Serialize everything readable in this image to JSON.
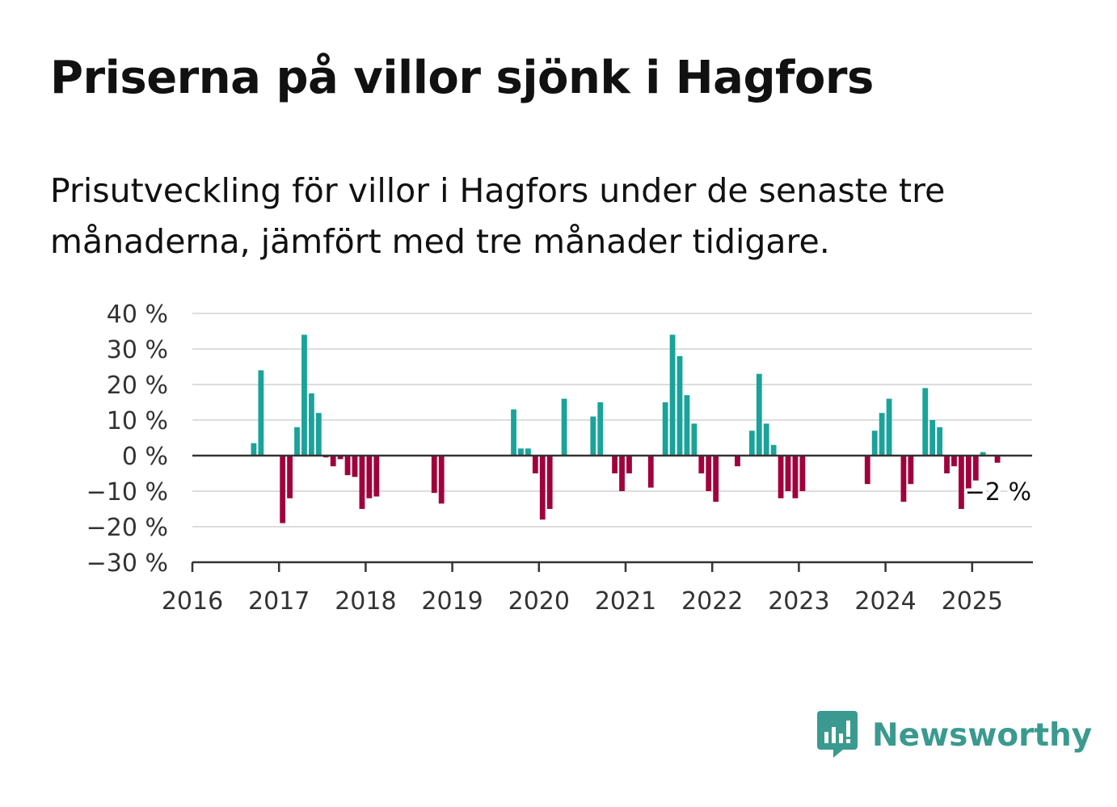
{
  "title": "Priserna på villor sjönk i Hagfors",
  "subtitle": "Prisutveckling för villor i Hagfors under de senaste tre månaderna, jämfört med tre månader tidigare.",
  "brand": {
    "name": "Newsworthy",
    "icon": "newsworthy-logo-icon"
  },
  "colors": {
    "positive": "#1aa39a",
    "negative": "#a0003c",
    "grid": "#dddddd",
    "axis": "#333333"
  },
  "chart_data": {
    "type": "bar",
    "title": "Priserna på villor sjönk i Hagfors",
    "x_unit": "month",
    "x_start": "2016-01",
    "ylim": [
      -30,
      40
    ],
    "yticks": [
      -30,
      -20,
      -10,
      0,
      10,
      20,
      30,
      40
    ],
    "ytick_labels": [
      "−30 %",
      "−20 %",
      "−10 %",
      "0 %",
      "10 %",
      "20 %",
      "30 %",
      "40 %"
    ],
    "xticks": [
      "2016",
      "2017",
      "2018",
      "2019",
      "2020",
      "2021",
      "2022",
      "2023",
      "2024",
      "2025"
    ],
    "grid": true,
    "annotation": {
      "x": "2025-04",
      "text": "−2 %"
    },
    "series": [
      {
        "values": [
          {
            "x": "2016-09",
            "y": 3.5
          },
          {
            "x": "2016-10",
            "y": 24
          },
          {
            "x": "2017-01",
            "y": -19
          },
          {
            "x": "2017-02",
            "y": -12
          },
          {
            "x": "2017-03",
            "y": 8
          },
          {
            "x": "2017-04",
            "y": 34
          },
          {
            "x": "2017-05",
            "y": 17.5
          },
          {
            "x": "2017-06",
            "y": 12
          },
          {
            "x": "2017-07",
            "y": -0.5
          },
          {
            "x": "2017-08",
            "y": -3
          },
          {
            "x": "2017-09",
            "y": -1
          },
          {
            "x": "2017-10",
            "y": -5.5
          },
          {
            "x": "2017-11",
            "y": -6
          },
          {
            "x": "2017-12",
            "y": -15
          },
          {
            "x": "2018-01",
            "y": -12
          },
          {
            "x": "2018-02",
            "y": -11.5
          },
          {
            "x": "2018-10",
            "y": -10.5
          },
          {
            "x": "2018-11",
            "y": -13.5
          },
          {
            "x": "2019-09",
            "y": 13
          },
          {
            "x": "2019-10",
            "y": 2
          },
          {
            "x": "2019-11",
            "y": 2
          },
          {
            "x": "2019-12",
            "y": -5
          },
          {
            "x": "2020-01",
            "y": -18
          },
          {
            "x": "2020-02",
            "y": -15
          },
          {
            "x": "2020-04",
            "y": 16
          },
          {
            "x": "2020-08",
            "y": 11
          },
          {
            "x": "2020-09",
            "y": 15
          },
          {
            "x": "2020-11",
            "y": -5
          },
          {
            "x": "2020-12",
            "y": -10
          },
          {
            "x": "2021-01",
            "y": -5
          },
          {
            "x": "2021-04",
            "y": -9
          },
          {
            "x": "2021-06",
            "y": 15
          },
          {
            "x": "2021-07",
            "y": 34
          },
          {
            "x": "2021-08",
            "y": 28
          },
          {
            "x": "2021-09",
            "y": 17
          },
          {
            "x": "2021-10",
            "y": 9
          },
          {
            "x": "2021-11",
            "y": -5
          },
          {
            "x": "2021-12",
            "y": -10
          },
          {
            "x": "2022-01",
            "y": -13
          },
          {
            "x": "2022-04",
            "y": -3
          },
          {
            "x": "2022-06",
            "y": 7
          },
          {
            "x": "2022-07",
            "y": 23
          },
          {
            "x": "2022-08",
            "y": 9
          },
          {
            "x": "2022-09",
            "y": 3
          },
          {
            "x": "2022-10",
            "y": -12
          },
          {
            "x": "2022-11",
            "y": -10
          },
          {
            "x": "2022-12",
            "y": -12
          },
          {
            "x": "2023-01",
            "y": -10
          },
          {
            "x": "2023-10",
            "y": -8
          },
          {
            "x": "2023-11",
            "y": 7
          },
          {
            "x": "2023-12",
            "y": 12
          },
          {
            "x": "2024-01",
            "y": 16
          },
          {
            "x": "2024-03",
            "y": -13
          },
          {
            "x": "2024-04",
            "y": -8
          },
          {
            "x": "2024-06",
            "y": 19
          },
          {
            "x": "2024-07",
            "y": 10
          },
          {
            "x": "2024-08",
            "y": 8
          },
          {
            "x": "2024-09",
            "y": -5
          },
          {
            "x": "2024-10",
            "y": -3
          },
          {
            "x": "2024-11",
            "y": -15
          },
          {
            "x": "2024-12",
            "y": -10
          },
          {
            "x": "2025-01",
            "y": -7
          },
          {
            "x": "2025-02",
            "y": 1
          },
          {
            "x": "2025-04",
            "y": -2
          }
        ]
      }
    ]
  }
}
